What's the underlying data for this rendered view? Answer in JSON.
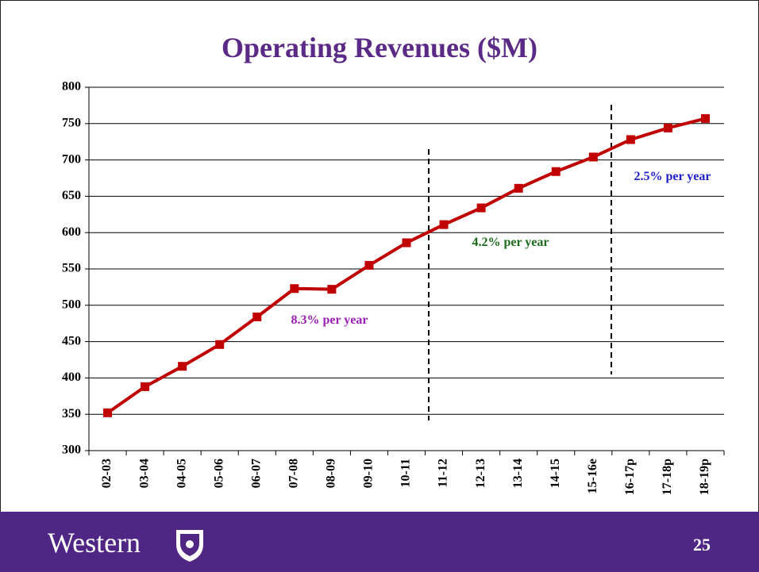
{
  "chart_data": {
    "type": "line",
    "title": "Operating Revenues ($M)",
    "categories": [
      "02-03",
      "03-04",
      "04-05",
      "05-06",
      "06-07",
      "07-08",
      "08-09",
      "09-10",
      "10-11",
      "11-12",
      "12-13",
      "13-14",
      "14-15",
      "15-16e",
      "16-17p",
      "17-18p",
      "18-19p"
    ],
    "values": [
      352,
      388,
      416,
      446,
      484,
      523,
      522,
      555,
      586,
      611,
      634,
      661,
      684,
      704,
      728,
      744,
      757
    ],
    "color": "#c00000",
    "ylim": [
      300,
      800
    ],
    "yticks": [
      300,
      350,
      400,
      450,
      500,
      550,
      600,
      650,
      700,
      750,
      800
    ],
    "grid": true,
    "annotations": [
      {
        "text": "8.3% per year",
        "color": "#9b1fb5"
      },
      {
        "text": "4.2% per year",
        "color": "#1a6b1a"
      },
      {
        "text": "2.5% per year",
        "color": "#1f1fc8"
      }
    ]
  },
  "footer": {
    "brand": "Western",
    "page": "25"
  }
}
